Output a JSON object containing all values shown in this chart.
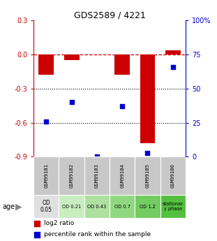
{
  "title": "GDS2589 / 4221",
  "samples": [
    "GSM99181",
    "GSM99182",
    "GSM99183",
    "GSM99184",
    "GSM99185",
    "GSM99186"
  ],
  "log2_ratio": [
    -0.18,
    -0.05,
    0.0,
    -0.18,
    -0.78,
    0.04
  ],
  "percentile_rank": [
    26,
    40,
    0,
    37,
    3,
    66
  ],
  "bar_color": "#cc0000",
  "dot_color": "#0000cc",
  "left_ylim": [
    -0.9,
    0.3
  ],
  "right_ylim": [
    0,
    100
  ],
  "left_yticks": [
    0.3,
    0.0,
    -0.3,
    -0.6,
    -0.9
  ],
  "right_yticks": [
    100,
    75,
    50,
    25,
    0
  ],
  "dotted_lines": [
    -0.3,
    -0.6
  ],
  "age_labels": [
    "OD\n0.05",
    "OD 0.21",
    "OD 0.43",
    "OD 0.7",
    "OD 1.2",
    "stationar\ny phase"
  ],
  "age_colors": [
    "#e0e0e0",
    "#c8eec0",
    "#aee0a0",
    "#90d880",
    "#72cc60",
    "#55c040"
  ],
  "sample_color": "#c8c8c8",
  "legend_red": "log2 ratio",
  "legend_blue": "percentile rank within the sample"
}
